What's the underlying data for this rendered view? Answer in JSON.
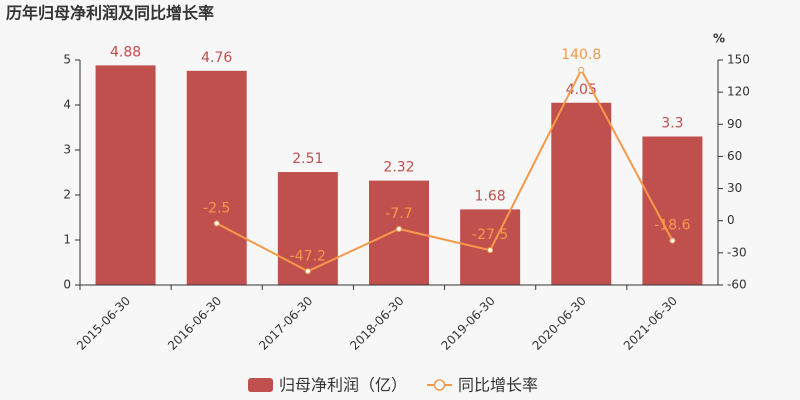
{
  "chart_data": {
    "type": "bar_line",
    "title": "历年归母净利润及同比增长率",
    "categories": [
      "2015-06-30",
      "2016-06-30",
      "2017-06-30",
      "2018-06-30",
      "2019-06-30",
      "2020-06-30",
      "2021-06-30"
    ],
    "series": [
      {
        "name": "归母净利润（亿）",
        "type": "bar",
        "color": "#c0504e",
        "values": [
          4.88,
          4.76,
          2.51,
          2.32,
          1.68,
          4.05,
          3.3
        ]
      },
      {
        "name": "同比增长率",
        "type": "line",
        "axis": "y2",
        "color": "#f5994a",
        "values": [
          null,
          -2.5,
          -47.2,
          -7.7,
          -27.5,
          140.8,
          -18.6
        ]
      }
    ],
    "ylim": [
      0,
      5
    ],
    "yticks": [
      0,
      1,
      2,
      3,
      4,
      5
    ],
    "y2lim": [
      -60,
      150
    ],
    "y2ticks": [
      -60,
      -30,
      0,
      30,
      60,
      90,
      120,
      150
    ],
    "y2_unit": "%",
    "legend": "bottom"
  }
}
